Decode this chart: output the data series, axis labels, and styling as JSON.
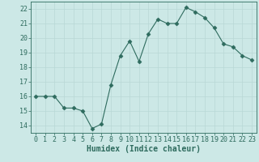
{
  "x": [
    0,
    1,
    2,
    3,
    4,
    5,
    6,
    7,
    8,
    9,
    10,
    11,
    12,
    13,
    14,
    15,
    16,
    17,
    18,
    19,
    20,
    21,
    22,
    23
  ],
  "y": [
    16,
    16,
    16,
    15.2,
    15.2,
    15,
    13.8,
    14.1,
    16.8,
    18.8,
    19.8,
    18.4,
    20.3,
    21.3,
    21.0,
    21.0,
    22.1,
    21.8,
    21.4,
    20.7,
    19.6,
    19.4,
    18.8,
    18.5
  ],
  "line_color": "#2e6b5e",
  "marker": "D",
  "marker_size": 2.5,
  "bg_color": "#cce8e6",
  "grid_color": "#b8d8d5",
  "xlabel": "Humidex (Indice chaleur)",
  "xlim": [
    -0.5,
    23.5
  ],
  "ylim": [
    13.5,
    22.5
  ],
  "yticks": [
    14,
    15,
    16,
    17,
    18,
    19,
    20,
    21,
    22
  ],
  "xticks": [
    0,
    1,
    2,
    3,
    4,
    5,
    6,
    7,
    8,
    9,
    10,
    11,
    12,
    13,
    14,
    15,
    16,
    17,
    18,
    19,
    20,
    21,
    22,
    23
  ],
  "tick_color": "#2e6b5e",
  "axis_color": "#2e6b5e",
  "label_fontsize": 7,
  "tick_fontsize": 6
}
